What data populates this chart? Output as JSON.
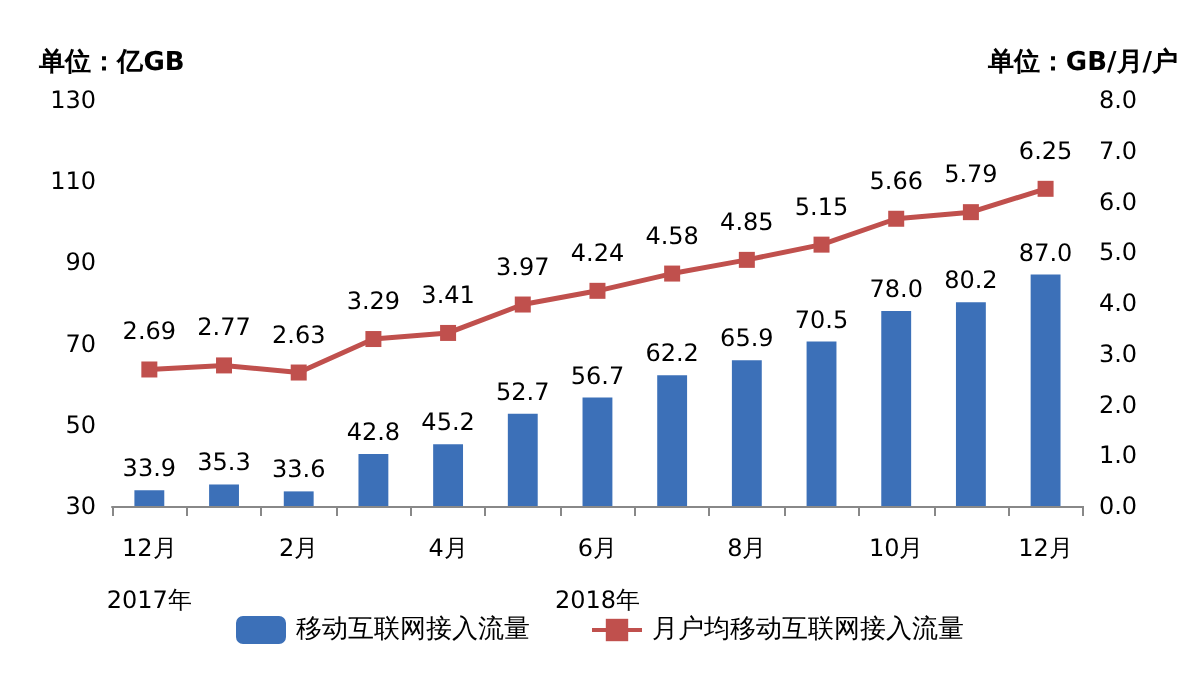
{
  "chart_data": {
    "type": "bar",
    "ylabel": "单位：亿GB",
    "y2label": "单位：GB/月/户",
    "categories": [
      "12月\n2017年",
      null,
      "2月",
      null,
      "4月",
      null,
      "6月\n2018年",
      null,
      "8月",
      null,
      "10月",
      null,
      "12月"
    ],
    "series": [
      {
        "name": "移动互联网接入流量",
        "color": "#3c70b8",
        "values": [
          33.9,
          35.3,
          33.6,
          42.8,
          45.2,
          52.7,
          56.7,
          62.2,
          65.9,
          70.5,
          78.0,
          80.2,
          87.0
        ],
        "value_labels": [
          "33.9",
          "35.3",
          "33.6",
          "42.8",
          "45.2",
          "52.7",
          "56.7",
          "62.2",
          "65.9",
          "70.5",
          "78.0",
          "80.2",
          "87.0"
        ]
      },
      {
        "name": "月户均移动互联网接入流量",
        "type": "line",
        "axis": "y2",
        "color": "#c0504d",
        "marker": "square",
        "values": [
          2.69,
          2.77,
          2.63,
          3.29,
          3.41,
          3.97,
          4.24,
          4.58,
          4.85,
          5.15,
          5.66,
          5.79,
          6.25
        ],
        "value_labels": [
          "2.69",
          "2.77",
          "2.63",
          "3.29",
          "3.41",
          "3.97",
          "4.24",
          "4.58",
          "4.85",
          "5.15",
          "5.66",
          "5.79",
          "6.25"
        ]
      }
    ],
    "ylim": [
      30,
      130
    ],
    "yticks": [
      30,
      50,
      70,
      90,
      110,
      130
    ],
    "y2lim": [
      0,
      8
    ],
    "y2ticks": [
      {
        "value": 0,
        "label": "0.0"
      },
      {
        "value": 1,
        "label": "1.0"
      },
      {
        "value": 2,
        "label": "2.0"
      },
      {
        "value": 3,
        "label": "3.0"
      },
      {
        "value": 4,
        "label": "4.0"
      },
      {
        "value": 5,
        "label": "5.0"
      },
      {
        "value": 6,
        "label": "6.0"
      },
      {
        "value": 7,
        "label": "7.0"
      },
      {
        "value": 8,
        "label": "8.0"
      }
    ],
    "grid": false,
    "legend": "bottom"
  }
}
